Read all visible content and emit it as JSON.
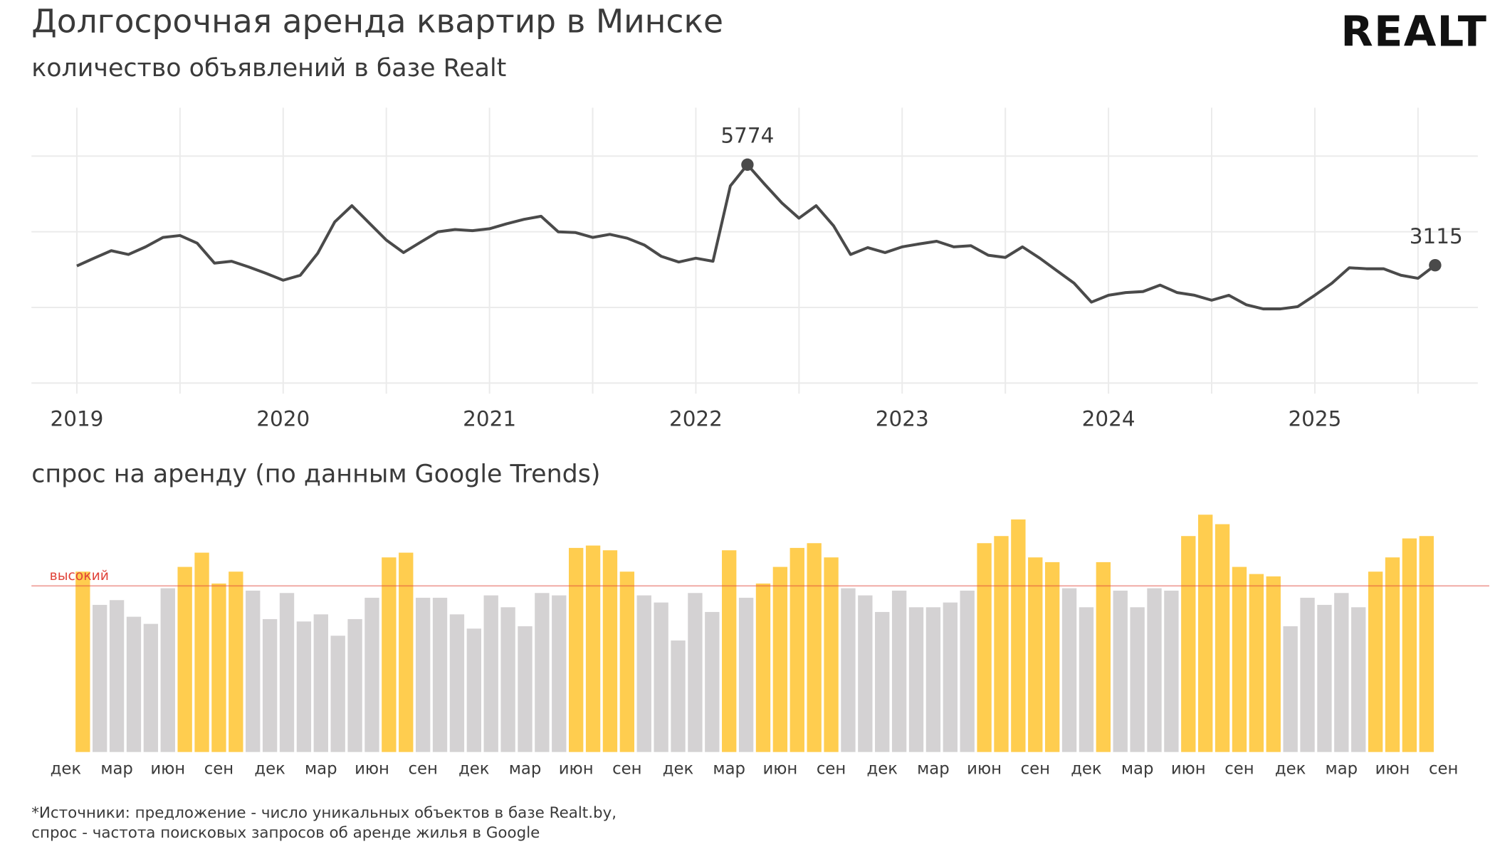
{
  "logo": "REALT",
  "footnote": [
    "*Источники: предложение - число уникальных объектов в базе Realt.by,",
    "спрос - частота поисковых запросов об аренде жилья в Google"
  ],
  "chart_data": [
    {
      "type": "line",
      "title": "Долгосрочная аренда квартир в Минске",
      "subtitle": "количество объявлений в базе Realt",
      "color": "#4a4a4a",
      "x": [
        2019,
        2019.083,
        2019.167,
        2019.25,
        2019.333,
        2019.417,
        2019.5,
        2019.583,
        2019.667,
        2019.75,
        2019.833,
        2019.917,
        2020,
        2020.083,
        2020.167,
        2020.25,
        2020.333,
        2020.417,
        2020.5,
        2020.583,
        2020.667,
        2020.75,
        2020.833,
        2020.917,
        2021,
        2021.083,
        2021.167,
        2021.25,
        2021.333,
        2021.417,
        2021.5,
        2021.583,
        2021.667,
        2021.75,
        2021.833,
        2021.917,
        2022,
        2022.083,
        2022.167,
        2022.25,
        2022.333,
        2022.417,
        2022.5,
        2022.583,
        2022.667,
        2022.75,
        2022.833,
        2022.917,
        2023,
        2023.083,
        2023.167,
        2023.25,
        2023.333,
        2023.417,
        2023.5,
        2023.583,
        2023.667,
        2023.75,
        2023.833,
        2023.917,
        2024,
        2024.083,
        2024.167,
        2024.25,
        2024.333,
        2024.417,
        2024.5,
        2024.583,
        2024.667,
        2024.75,
        2024.833,
        2024.917,
        2025,
        2025.083,
        2025.167,
        2025.25,
        2025.333,
        2025.417,
        2025.5,
        2025.583
      ],
      "values": [
        3098,
        3300,
        3500,
        3400,
        3600,
        3850,
        3900,
        3700,
        3170,
        3220,
        3070,
        2900,
        2720,
        2850,
        3430,
        4260,
        4690,
        4230,
        3780,
        3450,
        3730,
        4000,
        4060,
        4030,
        4080,
        4210,
        4330,
        4410,
        4000,
        3980,
        3850,
        3930,
        3830,
        3650,
        3350,
        3200,
        3300,
        3220,
        5210,
        5774,
        5260,
        4760,
        4360,
        4690,
        4160,
        3400,
        3580,
        3450,
        3600,
        3680,
        3750,
        3600,
        3630,
        3380,
        3320,
        3600,
        3300,
        2970,
        2640,
        2140,
        2320,
        2390,
        2420,
        2590,
        2390,
        2320,
        2190,
        2320,
        2070,
        1960,
        1960,
        2020,
        2320,
        2640,
        3050,
        3020,
        3020,
        2850,
        2770,
        3115
      ],
      "xlim": [
        2018.78,
        2025.79
      ],
      "xticks": [
        2019,
        2020,
        2021,
        2022,
        2023,
        2024,
        2025
      ],
      "minor_xticks": [
        2019.5,
        2020.5,
        2021.5,
        2022.5,
        2023.5,
        2024.5,
        2025.5
      ],
      "ylim": [
        -280,
        7280
      ],
      "yticks": [
        0,
        2000,
        4000,
        6000
      ],
      "grid": true
    },
    {
      "type": "bar",
      "title": "спрос на аренду (по данным Google Trends)",
      "color": "#d4d2d3",
      "highlight_color": "#ffcd4f",
      "threshold": {
        "value": 70,
        "label": "высокий",
        "color": "#e0443a"
      },
      "ylim": [
        0,
        100
      ],
      "categories": [
        "дек",
        null,
        null,
        "мар",
        null,
        null,
        "июн",
        null,
        null,
        "сен",
        null,
        null,
        "дек",
        null,
        null,
        "мар",
        null,
        null,
        "июн",
        null,
        null,
        "сен",
        null,
        null,
        "дек",
        null,
        null,
        "мар",
        null,
        null,
        "июн",
        null,
        null,
        "сен",
        null,
        null,
        "дек",
        null,
        null,
        "мар",
        null,
        null,
        "июн",
        null,
        null,
        "сен",
        null,
        null,
        "дек",
        null,
        null,
        "мар",
        null,
        null,
        "июн",
        null,
        null,
        "сен",
        null,
        null,
        "дек",
        null,
        null,
        "мар",
        null,
        null,
        "июн",
        null,
        null,
        "сен",
        null,
        null,
        "дек",
        null,
        null,
        "мар",
        null,
        null,
        "июн",
        null,
        null,
        "сен"
      ],
      "values": [
        null,
        76,
        62,
        64,
        57,
        54,
        69,
        78,
        84,
        71,
        76,
        68,
        56,
        67,
        55,
        58,
        49,
        56,
        65,
        82,
        84,
        65,
        65,
        58,
        52,
        66,
        61,
        53,
        67,
        66,
        86,
        87,
        85,
        76,
        66,
        63,
        47,
        67,
        59,
        85,
        65,
        71,
        78,
        86,
        88,
        82,
        69,
        66,
        59,
        68,
        61,
        61,
        63,
        68,
        88,
        91,
        98,
        82,
        80,
        69,
        61,
        80,
        68,
        61,
        69,
        68,
        91,
        100,
        96,
        78,
        75,
        74,
        53,
        65,
        62,
        67,
        61,
        76,
        82,
        90,
        91,
        null
      ]
    }
  ]
}
